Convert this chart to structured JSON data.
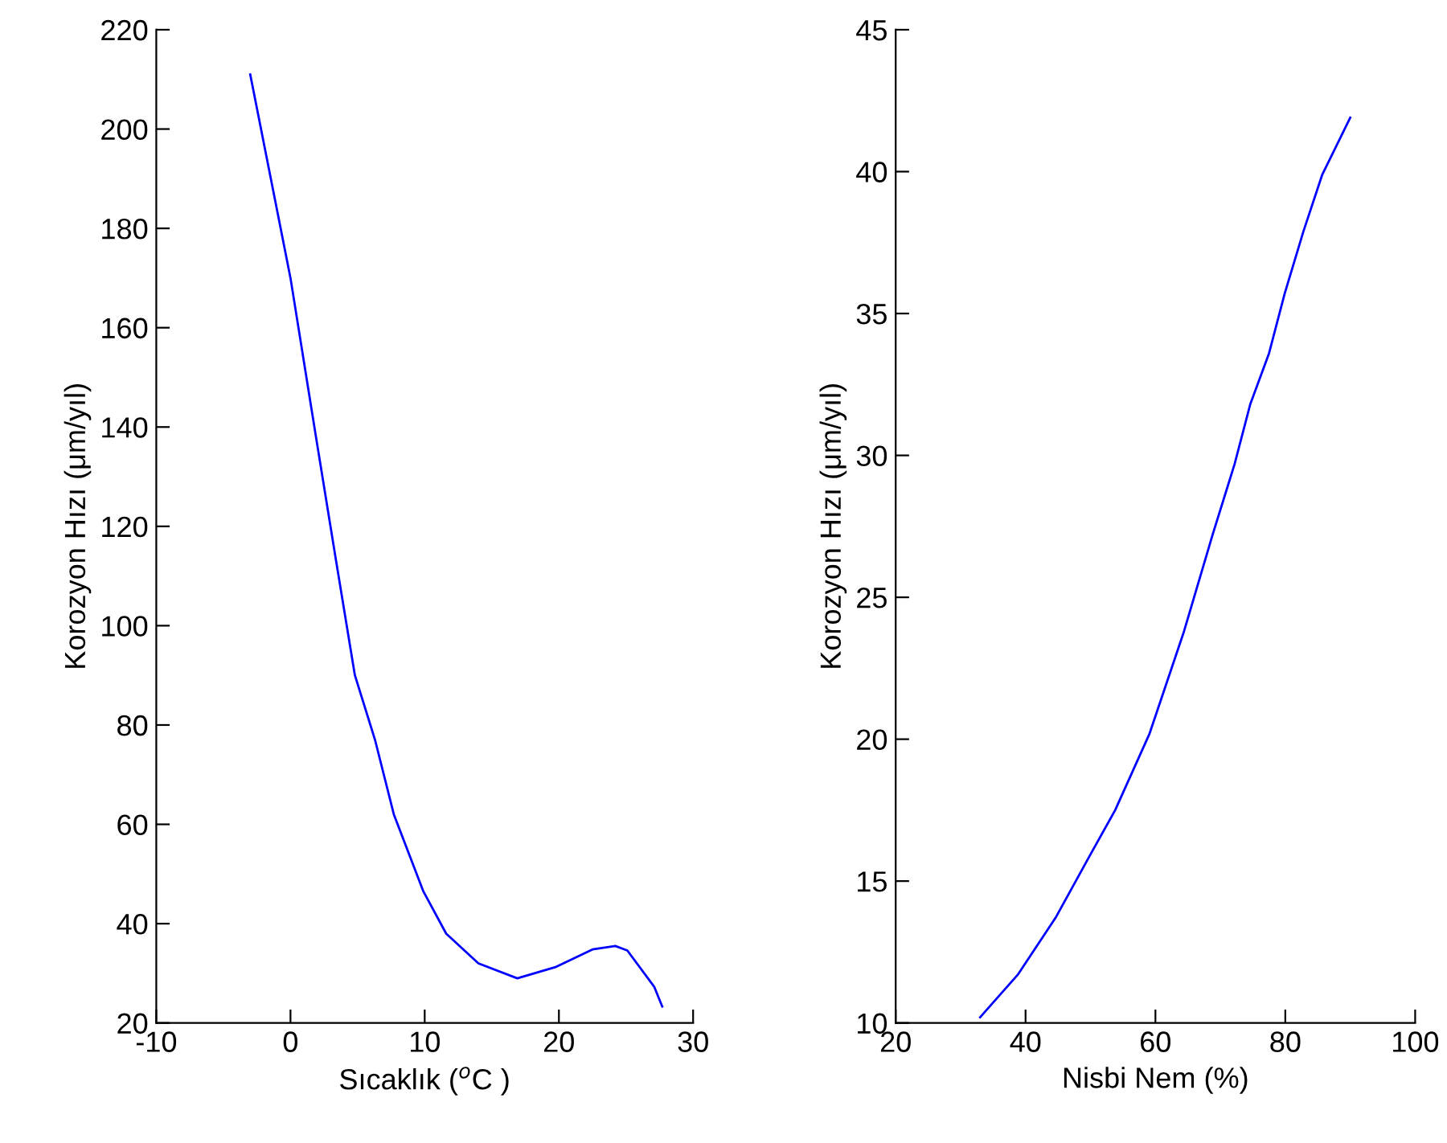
{
  "chart_data": [
    {
      "type": "line",
      "xlabel": "Sıcaklık ($^{o}$C )",
      "ylabel": "Korozyon Hızı (μm/yıl)",
      "xlim": [
        -10,
        30
      ],
      "xticks": [
        -10,
        0,
        10,
        20,
        30
      ],
      "ylim": [
        20,
        220
      ],
      "yticks": [
        20,
        40,
        60,
        80,
        100,
        120,
        140,
        160,
        180,
        200,
        220
      ],
      "grid": false,
      "legend": false,
      "x": [
        -3.0,
        0,
        1.9,
        3.4,
        4.8,
        6.3,
        7.7,
        9.9,
        11.6,
        14.0,
        16.9,
        19.8,
        22.5,
        24.2,
        25.1,
        27.1,
        27.7
      ],
      "series": [
        {
          "color": "#0000ff",
          "values": [
            211,
            170,
            138,
            113,
            90,
            77,
            62,
            46.5,
            38,
            32,
            29,
            31.3,
            34.8,
            35.5,
            34.6,
            27.3,
            23.3
          ]
        }
      ]
    },
    {
      "type": "line",
      "xlabel": "Nisbi Nem (%)",
      "ylabel": "Korozyon Hızı (μm/yıl)",
      "xlim": [
        20,
        100
      ],
      "xticks": [
        20,
        40,
        60,
        80,
        100
      ],
      "ylim": [
        10,
        45
      ],
      "yticks": [
        10,
        15,
        20,
        25,
        30,
        35,
        40,
        45
      ],
      "grid": false,
      "legend": false,
      "x": [
        33.0,
        38.8,
        44.6,
        49.9,
        53.8,
        59.1,
        64.4,
        68.8,
        72.2,
        74.6,
        77.5,
        79.9,
        82.8,
        85.7,
        90.0
      ],
      "series": [
        {
          "color": "#0000ff",
          "values": [
            10.2,
            11.7,
            13.7,
            15.9,
            17.5,
            20.2,
            23.8,
            27.2,
            29.7,
            31.8,
            33.6,
            35.7,
            37.9,
            39.9,
            41.9
          ]
        }
      ]
    }
  ]
}
